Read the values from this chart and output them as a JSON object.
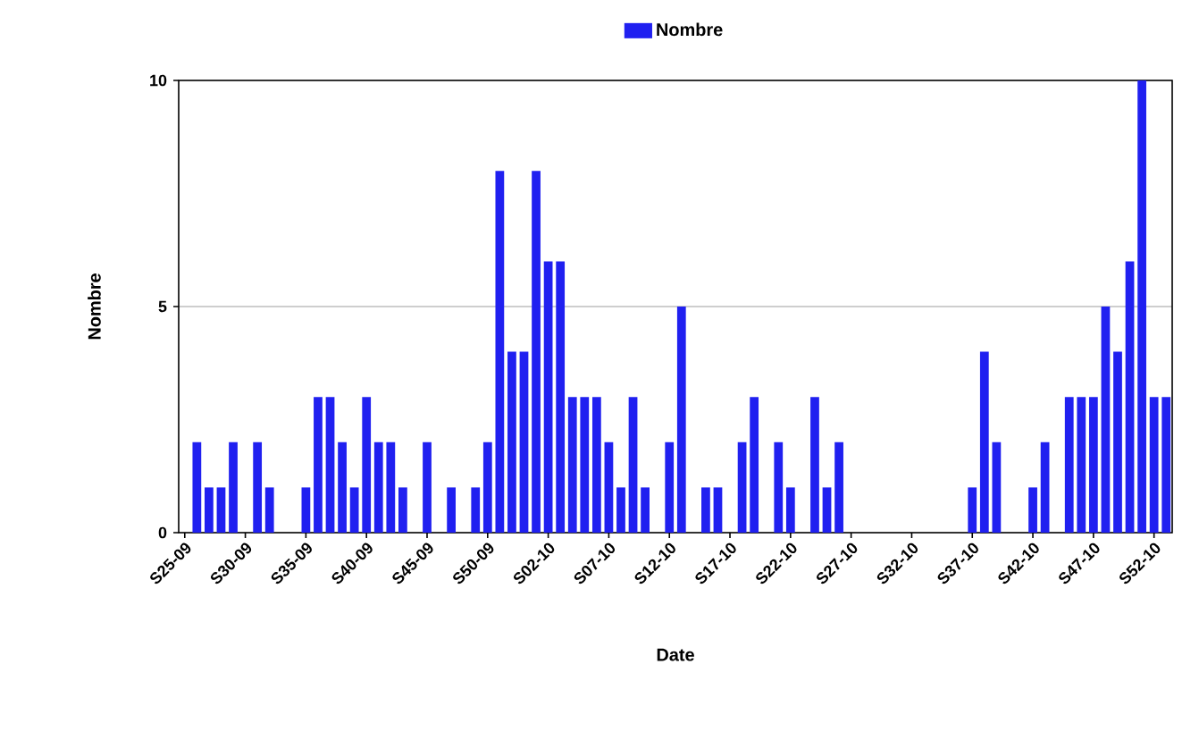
{
  "chart_data": {
    "type": "bar",
    "xlabel": "Date",
    "ylabel": "Nombre",
    "categories": [
      "S25-09",
      null,
      null,
      null,
      null,
      "S30-09",
      null,
      null,
      null,
      null,
      "S35-09",
      null,
      null,
      null,
      null,
      "S40-09",
      null,
      null,
      null,
      null,
      "S45-09",
      null,
      null,
      null,
      null,
      "S50-09",
      null,
      null,
      null,
      null,
      "S02-10",
      null,
      null,
      null,
      null,
      "S07-10",
      null,
      null,
      null,
      null,
      "S12-10",
      null,
      null,
      null,
      null,
      "S17-10",
      null,
      null,
      null,
      null,
      "S22-10",
      null,
      null,
      null,
      null,
      "S27-10",
      null,
      null,
      null,
      null,
      "S32-10",
      null,
      null,
      null,
      null,
      "S37-10",
      null,
      null,
      null,
      null,
      "S42-10",
      null,
      null,
      null,
      null,
      "S47-10",
      null,
      null,
      null,
      null,
      "S52-10",
      null
    ],
    "series": [
      {
        "name": "Nombre",
        "color": "#2020f0",
        "values": [
          0,
          2,
          1,
          1,
          2,
          0,
          2,
          1,
          0,
          0,
          1,
          3,
          3,
          2,
          1,
          3,
          2,
          2,
          1,
          0,
          2,
          0,
          1,
          0,
          1,
          2,
          8,
          4,
          4,
          8,
          6,
          6,
          3,
          3,
          3,
          2,
          1,
          3,
          1,
          0,
          2,
          5,
          0,
          1,
          1,
          0,
          2,
          3,
          0,
          2,
          1,
          0,
          3,
          1,
          2,
          0,
          0,
          0,
          0,
          0,
          0,
          0,
          0,
          0,
          0,
          1,
          4,
          2,
          0,
          0,
          1,
          2,
          0,
          3,
          3,
          3,
          5,
          4,
          6,
          10,
          3,
          3
        ]
      }
    ],
    "ylim": [
      0,
      10
    ],
    "yticks": [
      0,
      5,
      10
    ],
    "grid": "y",
    "legend": "top"
  }
}
